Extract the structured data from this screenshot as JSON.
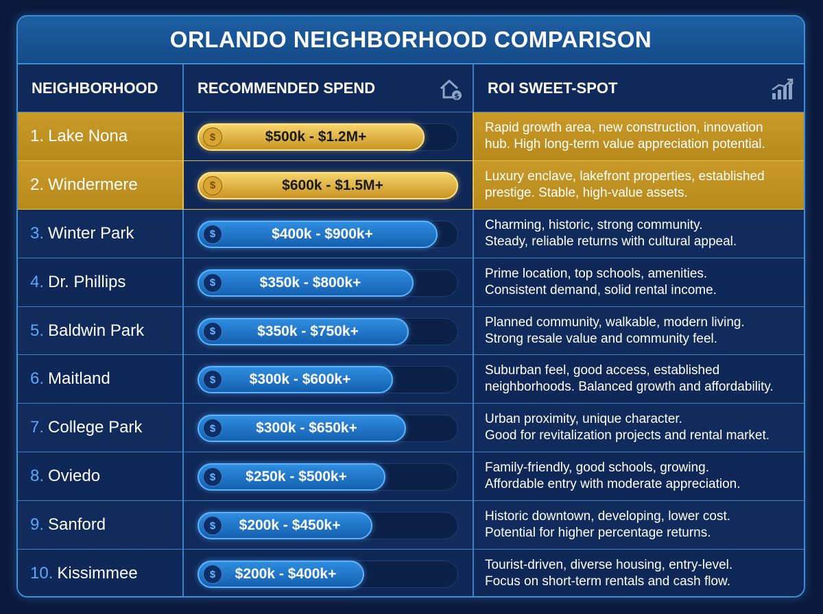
{
  "title": "ORLANDO NEIGHBORHOOD COMPARISON",
  "headers": {
    "neighborhood": "NEIGHBORHOOD",
    "spend": "RECOMMENDED SPEND",
    "roi": "ROI SWEET-SPOT",
    "spend_icon": "house-dollar-icon",
    "roi_icon": "bar-chart-growth-icon"
  },
  "colors": {
    "background": "#0a1a3c",
    "accent_blue": "#3d8fd6",
    "gold": "#c99a28"
  },
  "rows": [
    {
      "rank": "1.",
      "name": "Lake Nona",
      "spend": "$500k - $1.2M+",
      "spend_fill": 0.87,
      "highlight": true,
      "roi_line1": "Rapid growth area, new construction, innovation",
      "roi_line2": "hub. High long-term value appreciation potential."
    },
    {
      "rank": "2.",
      "name": "Windermere",
      "spend": "$600k - $1.5M+",
      "spend_fill": 1.0,
      "highlight": true,
      "roi_line1": "Luxury enclave, lakefront properties, established",
      "roi_line2": "prestige. Stable, high-value assets."
    },
    {
      "rank": "3.",
      "name": "Winter Park",
      "spend": "$400k - $900k+",
      "spend_fill": 0.92,
      "highlight": false,
      "roi_line1": "Charming, historic, strong community.",
      "roi_line2": "Steady, reliable returns with cultural appeal."
    },
    {
      "rank": "4.",
      "name": "Dr. Phillips",
      "spend": "$350k - $800k+",
      "spend_fill": 0.83,
      "highlight": false,
      "roi_line1": "Prime location, top schools, amenities.",
      "roi_line2": "Consistent demand, solid rental income."
    },
    {
      "rank": "5.",
      "name": "Baldwin Park",
      "spend": "$350k - $750k+",
      "spend_fill": 0.81,
      "highlight": false,
      "roi_line1": "Planned community, walkable, modern living.",
      "roi_line2": "Strong resale value and community feel."
    },
    {
      "rank": "6.",
      "name": "Maitland",
      "spend": "$300k - $600k+",
      "spend_fill": 0.75,
      "highlight": false,
      "roi_line1": "Suburban feel, good access, established",
      "roi_line2": "neighborhoods. Balanced growth and affordability."
    },
    {
      "rank": "7.",
      "name": "College Park",
      "spend": "$300k - $650k+",
      "spend_fill": 0.8,
      "highlight": false,
      "roi_line1": "Urban proximity, unique character.",
      "roi_line2": "Good for revitalization projects and rental market."
    },
    {
      "rank": "8.",
      "name": "Oviedo",
      "spend": "$250k - $500k+",
      "spend_fill": 0.72,
      "highlight": false,
      "roi_line1": "Family-friendly, good schools, growing.",
      "roi_line2": "Affordable entry with moderate appreciation."
    },
    {
      "rank": "9.",
      "name": "Sanford",
      "spend": "$200k - $450k+",
      "spend_fill": 0.67,
      "highlight": false,
      "roi_line1": "Historic downtown, developing, lower cost.",
      "roi_line2": "Potential for higher percentage returns."
    },
    {
      "rank": "10.",
      "name": "Kissimmee",
      "spend": "$200k - $400k+",
      "spend_fill": 0.64,
      "highlight": false,
      "roi_line1": "Tourist-driven, diverse housing, entry-level.",
      "roi_line2": "Focus on short-term rentals and cash flow."
    }
  ]
}
